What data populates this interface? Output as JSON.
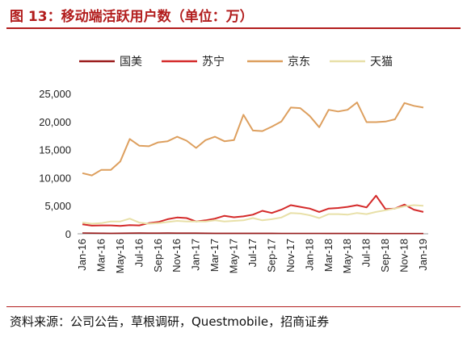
{
  "title": "图 13：移动端活跃用户数（单位：万）",
  "source": "资料来源：公司公告，草根调研，Questmobile，招商证券",
  "chart_data": {
    "type": "line",
    "x": [
      "Jan-16",
      "Feb-16",
      "Mar-16",
      "Apr-16",
      "May-16",
      "Jun-16",
      "Jul-16",
      "Aug-16",
      "Sep-16",
      "Oct-16",
      "Nov-16",
      "Dec-16",
      "Jan-17",
      "Feb-17",
      "Mar-17",
      "Apr-17",
      "May-17",
      "Jun-17",
      "Jul-17",
      "Aug-17",
      "Sep-17",
      "Oct-17",
      "Nov-17",
      "Dec-17",
      "Jan-18",
      "Feb-18",
      "Mar-18",
      "Apr-18",
      "May-18",
      "Jun-18",
      "Jul-18",
      "Aug-18",
      "Sep-18",
      "Oct-18",
      "Nov-18",
      "Dec-18",
      "Jan-19"
    ],
    "x_tick_labels": [
      "Jan-16",
      "Mar-16",
      "May-16",
      "Jul-16",
      "Sep-16",
      "Nov-16",
      "Jan-17",
      "Mar-17",
      "May-17",
      "Jul-17",
      "Sep-17",
      "Nov-17",
      "Jan-18",
      "Mar-18",
      "May-18",
      "Jul-18",
      "Sep-18",
      "Nov-18",
      "Jan-19"
    ],
    "y_ticks": [
      "0",
      "5,000",
      "10,000",
      "15,000",
      "20,000",
      "25,000"
    ],
    "ylim": [
      0,
      25000
    ],
    "grid": false,
    "legend_position": "top",
    "series": [
      {
        "name": "国美",
        "color": "#9b1b1b",
        "width": 1.6,
        "values": [
          150,
          120,
          100,
          90,
          100,
          110,
          130,
          110,
          120,
          130,
          120,
          110,
          110,
          100,
          90,
          90,
          80,
          80,
          80,
          80,
          80,
          70,
          70,
          70,
          70,
          70,
          60,
          60,
          60,
          60,
          60,
          50,
          50,
          50,
          50,
          50,
          50
        ]
      },
      {
        "name": "苏宁",
        "color": "#d42a2a",
        "width": 2,
        "values": [
          1700,
          1450,
          1500,
          1500,
          1400,
          1550,
          1500,
          1900,
          2100,
          2600,
          2900,
          2800,
          2200,
          2400,
          2700,
          3200,
          2950,
          3100,
          3400,
          4100,
          3700,
          4300,
          5100,
          4800,
          4500,
          3900,
          4500,
          4600,
          4800,
          5100,
          4700,
          6800,
          4400,
          4500,
          5200,
          4300,
          3900
        ]
      },
      {
        "name": "京东",
        "color": "#dd9f5e",
        "width": 2,
        "values": [
          10800,
          10400,
          11400,
          11400,
          12900,
          16900,
          15700,
          15600,
          16300,
          16500,
          17300,
          16600,
          15300,
          16700,
          17300,
          16500,
          16700,
          21200,
          18400,
          18300,
          19100,
          20000,
          22500,
          22400,
          21000,
          19000,
          22100,
          21800,
          22100,
          23400,
          19900,
          19900,
          20000,
          20400,
          23300,
          22800,
          22500
        ]
      },
      {
        "name": "天猫",
        "color": "#e8e0a8",
        "width": 2,
        "values": [
          2000,
          1800,
          1900,
          2200,
          2200,
          2700,
          2000,
          1800,
          1900,
          2100,
          2300,
          2200,
          2200,
          2200,
          2400,
          2200,
          2300,
          2400,
          2800,
          2400,
          2600,
          2900,
          3700,
          3600,
          3300,
          2800,
          3500,
          3500,
          3400,
          3700,
          3500,
          3900,
          4200,
          4500,
          4900,
          5100,
          5000
        ]
      }
    ]
  }
}
